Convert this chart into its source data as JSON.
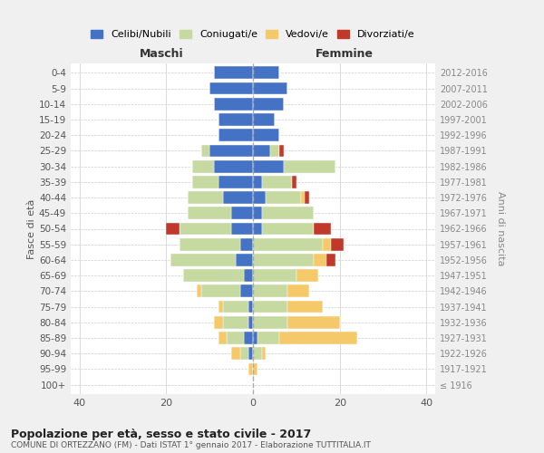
{
  "age_groups": [
    "100+",
    "95-99",
    "90-94",
    "85-89",
    "80-84",
    "75-79",
    "70-74",
    "65-69",
    "60-64",
    "55-59",
    "50-54",
    "45-49",
    "40-44",
    "35-39",
    "30-34",
    "25-29",
    "20-24",
    "15-19",
    "10-14",
    "5-9",
    "0-4"
  ],
  "birth_years": [
    "≤ 1916",
    "1917-1921",
    "1922-1926",
    "1927-1931",
    "1932-1936",
    "1937-1941",
    "1942-1946",
    "1947-1951",
    "1952-1956",
    "1957-1961",
    "1962-1966",
    "1967-1971",
    "1972-1976",
    "1977-1981",
    "1982-1986",
    "1987-1991",
    "1992-1996",
    "1997-2001",
    "2002-2006",
    "2007-2011",
    "2012-2016"
  ],
  "male": {
    "celibi": [
      0,
      0,
      1,
      2,
      1,
      1,
      3,
      2,
      4,
      3,
      5,
      5,
      7,
      8,
      9,
      10,
      8,
      8,
      9,
      10,
      9
    ],
    "coniugati": [
      0,
      0,
      2,
      4,
      6,
      6,
      9,
      14,
      15,
      14,
      12,
      10,
      8,
      6,
      5,
      2,
      0,
      0,
      0,
      0,
      0
    ],
    "vedovi": [
      0,
      1,
      2,
      2,
      2,
      1,
      1,
      0,
      0,
      0,
      0,
      0,
      0,
      0,
      0,
      0,
      0,
      0,
      0,
      0,
      0
    ],
    "divorziati": [
      0,
      0,
      0,
      0,
      0,
      0,
      0,
      0,
      0,
      0,
      3,
      0,
      0,
      0,
      0,
      0,
      0,
      0,
      0,
      0,
      0
    ]
  },
  "female": {
    "nubili": [
      0,
      0,
      0,
      1,
      0,
      0,
      0,
      0,
      0,
      0,
      2,
      2,
      3,
      2,
      7,
      4,
      6,
      5,
      7,
      8,
      6
    ],
    "coniugate": [
      0,
      0,
      2,
      5,
      8,
      8,
      8,
      10,
      14,
      16,
      12,
      12,
      8,
      7,
      12,
      2,
      0,
      0,
      0,
      0,
      0
    ],
    "vedove": [
      0,
      1,
      1,
      18,
      12,
      8,
      5,
      5,
      3,
      2,
      0,
      0,
      1,
      0,
      0,
      0,
      0,
      0,
      0,
      0,
      0
    ],
    "divorziate": [
      0,
      0,
      0,
      0,
      0,
      0,
      0,
      0,
      2,
      3,
      4,
      0,
      1,
      1,
      0,
      1,
      0,
      0,
      0,
      0,
      0
    ]
  },
  "colors": {
    "celibi_nubili": "#4472c4",
    "coniugati_e": "#c5d9a0",
    "vedovi_e": "#f5c96a",
    "divorziati_e": "#c0392b"
  },
  "xlim": 42,
  "title": "Popolazione per età, sesso e stato civile - 2017",
  "subtitle": "COMUNE DI ORTEZZANO (FM) - Dati ISTAT 1° gennaio 2017 - Elaborazione TUTTITALIA.IT",
  "ylabel": "Fasce di età",
  "ylabel_right": "Anni di nascita",
  "label_maschi": "Maschi",
  "label_femmine": "Femmine",
  "legend_labels": [
    "Celibi/Nubili",
    "Coniugati/e",
    "Vedovi/e",
    "Divorziati/e"
  ],
  "background_color": "#f0f0f0",
  "plot_bg_color": "#ffffff"
}
